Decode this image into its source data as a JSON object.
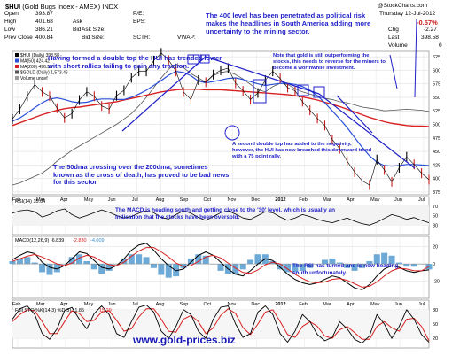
{
  "header": {
    "symbol": "$HUI",
    "index_name": "(Gold Bugs Index - AMEX)",
    "exchange": "INDX",
    "brand": "@StockCharts.com",
    "date": "Thursday 12-Jul-2012",
    "open_label": "Open",
    "open": "393.87",
    "high_label": "High",
    "high": "401.68",
    "low_label": "Low",
    "low": "386.21",
    "prev_close_label": "Prev Close",
    "prev_close": "400.84",
    "pe_label": "P/E:",
    "eps_label": "EPS:",
    "ask_label": "Ask",
    "bid_label": "Bid",
    "ask_size_label": "Ask Size:",
    "bid_size_label": "Bid Size:",
    "sctr_label": "SCTR:",
    "chg_label": "Chg",
    "chg": "-2.27",
    "pct": "-0.57%",
    "last_label": "Last",
    "last": "398.58",
    "vwap_label": "VWAP:",
    "volume_label": "Volume",
    "volume": "0"
  },
  "colors": {
    "price": "#000000",
    "ma50": "#2a4fd8",
    "ma200": "#d82020",
    "gold": "#555555",
    "annotation": "#1f1fc8",
    "hist": "#3d8ec9",
    "down_bar": "#cc1a1a"
  },
  "annotations": {
    "a1": "The 400 level has been penetrated as political risk makes the headlines in South America adding more uncertainty to the mining sector.",
    "a2": "Having formed a double top the HUI has trended lower with short rallies failing to gain any traction.",
    "a3": "Note that gold is still outperforming the stocks, this needs to reverse for the miners to become a worthwhile investment.",
    "a4": "A second double top has added to the negativity, however, the HUI has now breached this downward trend with a 75 point rally.",
    "a5": "The 50dma crossing over the 200dma, sometimes known as the cross of death, has proved to be bad news for this sector",
    "a6": "The MACD is heading south and getting close to the '30' level, which is usually an indication that the stocks have been oversold.",
    "a7": "The RSI has turned and is now heading south unfortunately."
  },
  "website": "www.gold-prices.biz",
  "chart_data": [
    {
      "type": "line",
      "panel": "price",
      "legend": [
        "$HUI (Daily) 398.58",
        "MA(50) 424.42",
        "MA(200) 496.33",
        "$GOLD (Daily) 1,573.46",
        "Volume undef"
      ],
      "x_ticks": [
        "Feb",
        "Mar",
        "Apr",
        "May",
        "Jun",
        "Jul",
        "Aug",
        "Sep",
        "Oct",
        "Nov",
        "Dec",
        "2012",
        "Feb",
        "Mar",
        "Apr",
        "May",
        "Jun",
        "Jul"
      ],
      "y_ticks": [
        625,
        600,
        575,
        550,
        525,
        500,
        475,
        450,
        425,
        400,
        375
      ],
      "ylim": [
        370,
        635
      ],
      "series": [
        {
          "name": "$HUI",
          "values": [
            510,
            528,
            552,
            574,
            560,
            552,
            530,
            512,
            520,
            545,
            560,
            552,
            534,
            528,
            553,
            563,
            586,
            598,
            598,
            618,
            632,
            619,
            598,
            560,
            546,
            582,
            578,
            592,
            600,
            604,
            576,
            562,
            546,
            558,
            582,
            598,
            585,
            568,
            562,
            542,
            526,
            511,
            498,
            472,
            455,
            432,
            412,
            396,
            388,
            435,
            416,
            394,
            420,
            440,
            426,
            410,
            398
          ]
        },
        {
          "name": "MA(50)",
          "values": [
            506,
            512,
            521,
            531,
            540,
            547,
            549,
            546,
            542,
            540,
            541,
            545,
            547,
            547,
            546,
            546,
            550,
            556,
            563,
            572,
            581,
            591,
            598,
            596,
            590,
            580,
            577,
            579,
            582,
            585,
            586,
            583,
            579,
            575,
            572,
            574,
            576,
            576,
            574,
            570,
            563,
            553,
            540,
            525,
            510,
            494,
            476,
            458,
            442,
            430,
            424,
            423,
            424,
            426,
            426,
            425,
            424
          ]
        },
        {
          "name": "MA(200)",
          "values": [
            498,
            503,
            508,
            513,
            518,
            522,
            526,
            529,
            531,
            532,
            534,
            536,
            538,
            540,
            542,
            545,
            548,
            551,
            554,
            557,
            560,
            562,
            564,
            565,
            565,
            565,
            564,
            564,
            564,
            563,
            562,
            561,
            560,
            559,
            558,
            557,
            556,
            555,
            553,
            551,
            548,
            545,
            541,
            537,
            533,
            528,
            523,
            518,
            513,
            509,
            505,
            502,
            500,
            498,
            497,
            497,
            496
          ]
        },
        {
          "name": "$GOLD",
          "values": [
            388,
            392,
            398,
            404,
            410,
            420,
            432,
            442,
            452,
            460,
            468,
            476,
            484,
            492,
            500,
            510,
            520,
            534,
            550,
            568,
            586,
            602,
            612,
            605,
            594,
            586,
            578,
            590,
            596,
            598,
            592,
            584,
            574,
            564,
            560,
            570,
            576,
            574,
            566,
            560,
            556,
            552,
            548,
            546,
            542,
            540,
            536,
            532,
            530,
            528,
            525,
            526,
            527,
            528,
            527,
            526,
            524
          ]
        }
      ]
    },
    {
      "type": "line",
      "panel": "RSI",
      "legend": "RSI(14) 35.04",
      "y_ticks": [
        70,
        50,
        30
      ],
      "ylim": [
        10,
        90
      ],
      "series": [
        {
          "name": "RSI(14)",
          "values": [
            55,
            60,
            62,
            58,
            47,
            52,
            60,
            64,
            52,
            45,
            50,
            56,
            62,
            57,
            50,
            45,
            48,
            55,
            60,
            56,
            46,
            43,
            52,
            60,
            55,
            46,
            40,
            48,
            56,
            60,
            53,
            45,
            42,
            50,
            58,
            56,
            47,
            40,
            45,
            52,
            48,
            42,
            38,
            35,
            40,
            45,
            38,
            33,
            30,
            36,
            44,
            52,
            48,
            42,
            46,
            40,
            35
          ]
        }
      ]
    },
    {
      "type": "line",
      "panel": "MACD",
      "legend": [
        "MACD(12,26,9) -6.839",
        "-2.830",
        "-4.009"
      ],
      "y_ticks": [
        20,
        0,
        -20
      ],
      "ylim": [
        -40,
        32
      ],
      "series": [
        {
          "name": "MACD(12,26,9)",
          "values": [
            5,
            10,
            14,
            12,
            2,
            -4,
            -6,
            -2,
            6,
            14,
            12,
            4,
            -4,
            -6,
            -2,
            6,
            16,
            22,
            24,
            16,
            6,
            -2,
            -8,
            -6,
            2,
            10,
            14,
            10,
            2,
            -6,
            -12,
            -14,
            -8,
            0,
            6,
            4,
            -4,
            -12,
            -18,
            -22,
            -24,
            -22,
            -18,
            -14,
            -16,
            -22,
            -28,
            -30,
            -24,
            -14,
            -6,
            -2,
            -4,
            -8,
            -10,
            -8,
            -7
          ]
        },
        {
          "name": "Signal",
          "values": [
            3,
            6,
            9,
            11,
            8,
            4,
            0,
            -2,
            1,
            7,
            10,
            8,
            3,
            -1,
            -2,
            2,
            9,
            15,
            19,
            19,
            14,
            8,
            1,
            -3,
            -2,
            3,
            8,
            10,
            7,
            1,
            -5,
            -10,
            -11,
            -7,
            -1,
            2,
            0,
            -6,
            -12,
            -17,
            -21,
            -22,
            -21,
            -18,
            -17,
            -19,
            -23,
            -27,
            -26,
            -21,
            -14,
            -8,
            -5,
            -6,
            -8,
            -8,
            -3
          ]
        }
      ]
    },
    {
      "type": "line",
      "panel": "Stochastic",
      "legend": [
        "Full STO %K(14,3) %D(3) 11.85",
        "15.29"
      ],
      "y_ticks": [
        80,
        50,
        20
      ],
      "ylim": [
        0,
        100
      ],
      "series": [
        {
          "name": "%K",
          "values": [
            60,
            82,
            88,
            70,
            30,
            18,
            40,
            78,
            85,
            60,
            40,
            72,
            88,
            70,
            30,
            22,
            55,
            85,
            90,
            75,
            35,
            20,
            45,
            80,
            70,
            35,
            20,
            60,
            85,
            88,
            50,
            22,
            30,
            75,
            88,
            70,
            30,
            12,
            35,
            70,
            55,
            28,
            15,
            22,
            55,
            40,
            18,
            10,
            25,
            70,
            50,
            20,
            45,
            80,
            60,
            28,
            12
          ]
        },
        {
          "name": "%D",
          "values": [
            55,
            70,
            80,
            78,
            55,
            30,
            30,
            55,
            78,
            72,
            55,
            58,
            75,
            78,
            58,
            35,
            40,
            65,
            82,
            82,
            60,
            35,
            33,
            60,
            68,
            55,
            30,
            42,
            68,
            82,
            72,
            42,
            28,
            50,
            75,
            80,
            55,
            28,
            22,
            45,
            55,
            45,
            25,
            20,
            38,
            45,
            32,
            18,
            18,
            45,
            55,
            42,
            35,
            60,
            62,
            45,
            15
          ]
        }
      ]
    }
  ]
}
